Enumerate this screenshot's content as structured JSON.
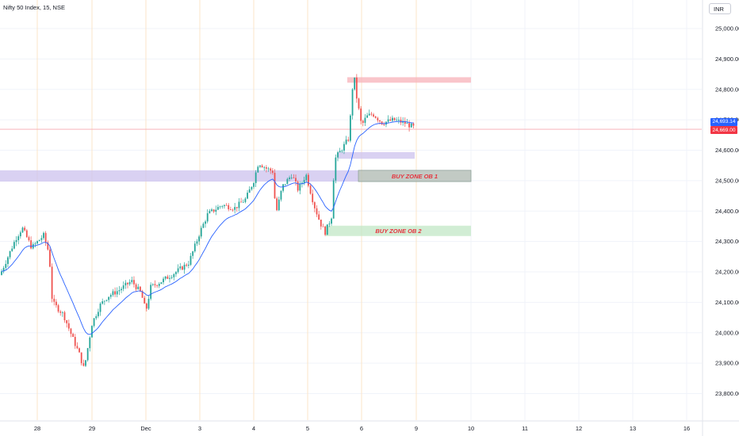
{
  "header": {
    "symbol_title": "Nifty 50 Index, 15, NSE",
    "currency": "INR"
  },
  "price_badges": {
    "ma": {
      "text": "24,693.14",
      "color": "#2962ff"
    },
    "last": {
      "text": "24,669.00",
      "color": "#f23645"
    }
  },
  "zones": [
    {
      "label": "",
      "color": "#f7b6bd",
      "price_top": 24840,
      "price_bottom": 24822,
      "from": "5 Dec",
      "to": "10 Dec"
    },
    {
      "label": "",
      "color": "#cfc5ef",
      "price_top": 24594,
      "price_bottom": 24572,
      "from": "5 Dec",
      "to": "9 Dec"
    },
    {
      "label": "",
      "color": "#cfc5ef",
      "price_top": 24534,
      "price_bottom": 24497,
      "from": "left edge",
      "to": "6 Dec"
    },
    {
      "label": "BUY ZONE OB 1",
      "color": "#b3bdb5",
      "price_top": 24534,
      "price_bottom": 24497,
      "from": "6 Dec",
      "to": "10 Dec"
    },
    {
      "label": "BUY ZONE OB 2",
      "color": "#c6e8c9",
      "price_top": 24352,
      "price_bottom": 24318,
      "from": "5 Dec",
      "to": "10 Dec"
    }
  ],
  "chart_data": {
    "type": "candlestick",
    "symbol": "Nifty 50 Index",
    "interval": "15",
    "exchange": "NSE",
    "currency": "INR",
    "x_tick_labels": [
      "28",
      "29",
      "Dec",
      "3",
      "4",
      "5",
      "6",
      "9",
      "10",
      "11",
      "12",
      "13",
      "16"
    ],
    "y_tick_labels": [
      "25,000.00",
      "24,900.00",
      "24,800.00",
      "24,700.00",
      "24,600.00",
      "24,500.00",
      "24,400.00",
      "24,300.00",
      "24,200.00",
      "24,100.00",
      "24,000.00",
      "23,900.00",
      "23,800.00"
    ],
    "y_ticks": [
      25000,
      24900,
      24800,
      24700,
      24600,
      24500,
      24400,
      24300,
      24200,
      24100,
      24000,
      23900,
      23800
    ],
    "ylim": [
      23740,
      25050
    ],
    "last_price": 24669.0,
    "moving_average_last": 24693.14,
    "session_close_path": [
      {
        "day": "27 Nov (end)",
        "close": 24190
      },
      {
        "day": "28 Nov",
        "close": 24320
      },
      {
        "day": "28 Nov",
        "close": 24050
      },
      {
        "day": "28 Nov (low)",
        "close": 23880
      },
      {
        "day": "29 Nov",
        "close": 24130
      },
      {
        "day": "Dec 2",
        "close": 24250
      },
      {
        "day": "Dec 3",
        "close": 24450
      },
      {
        "day": "Dec 4",
        "close": 24480
      },
      {
        "day": "Dec 5",
        "close": 24600
      },
      {
        "day": "Dec 5 (high)",
        "close": 24857
      },
      {
        "day": "Dec 6",
        "close": 24700
      },
      {
        "day": "Dec 6 (last)",
        "close": 24669
      }
    ],
    "grid": true,
    "legend": "none"
  },
  "colors": {
    "up": "#26a69a",
    "down": "#ef5350",
    "ma": "#2962ff",
    "grid": "#f0f3fa",
    "session_line": "#fbe5c8"
  }
}
